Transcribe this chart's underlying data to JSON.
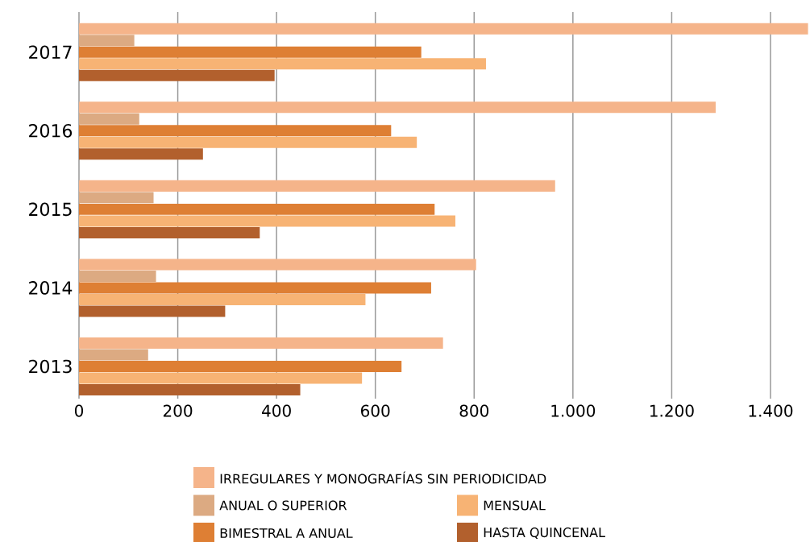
{
  "chart_data": {
    "type": "bar",
    "orientation": "horizontal",
    "categories": [
      "2017",
      "2016",
      "2015",
      "2014",
      "2013"
    ],
    "series": [
      {
        "name": "IRREGULARES Y MONOGRAFÍAS SIN PERIODICIDAD",
        "color": "#f5b48a",
        "values": [
          1476,
          1289,
          964,
          804,
          737
        ]
      },
      {
        "name": "ANUAL O SUPERIOR",
        "color": "#dcaa82",
        "values": [
          112,
          122,
          151,
          156,
          140
        ]
      },
      {
        "name": "BIMESTRAL A ANUAL",
        "color": "#de7f34",
        "values": [
          693,
          632,
          720,
          713,
          653
        ]
      },
      {
        "name": "MENSUAL",
        "color": "#f7b374",
        "values": [
          824,
          684,
          762,
          580,
          573
        ]
      },
      {
        "name": "HASTA QUINCENAL",
        "color": "#b2602d",
        "values": [
          396,
          251,
          366,
          296,
          448
        ]
      }
    ],
    "xlim": [
      0,
      1480
    ],
    "xticks": [
      0,
      200,
      400,
      600,
      800,
      {
        "value": 1000,
        "label": "1.000"
      },
      {
        "value": 1200,
        "label": "1.200"
      },
      {
        "value": 1400,
        "label": "1.400"
      }
    ],
    "grid": "x",
    "legend": "bottom"
  }
}
